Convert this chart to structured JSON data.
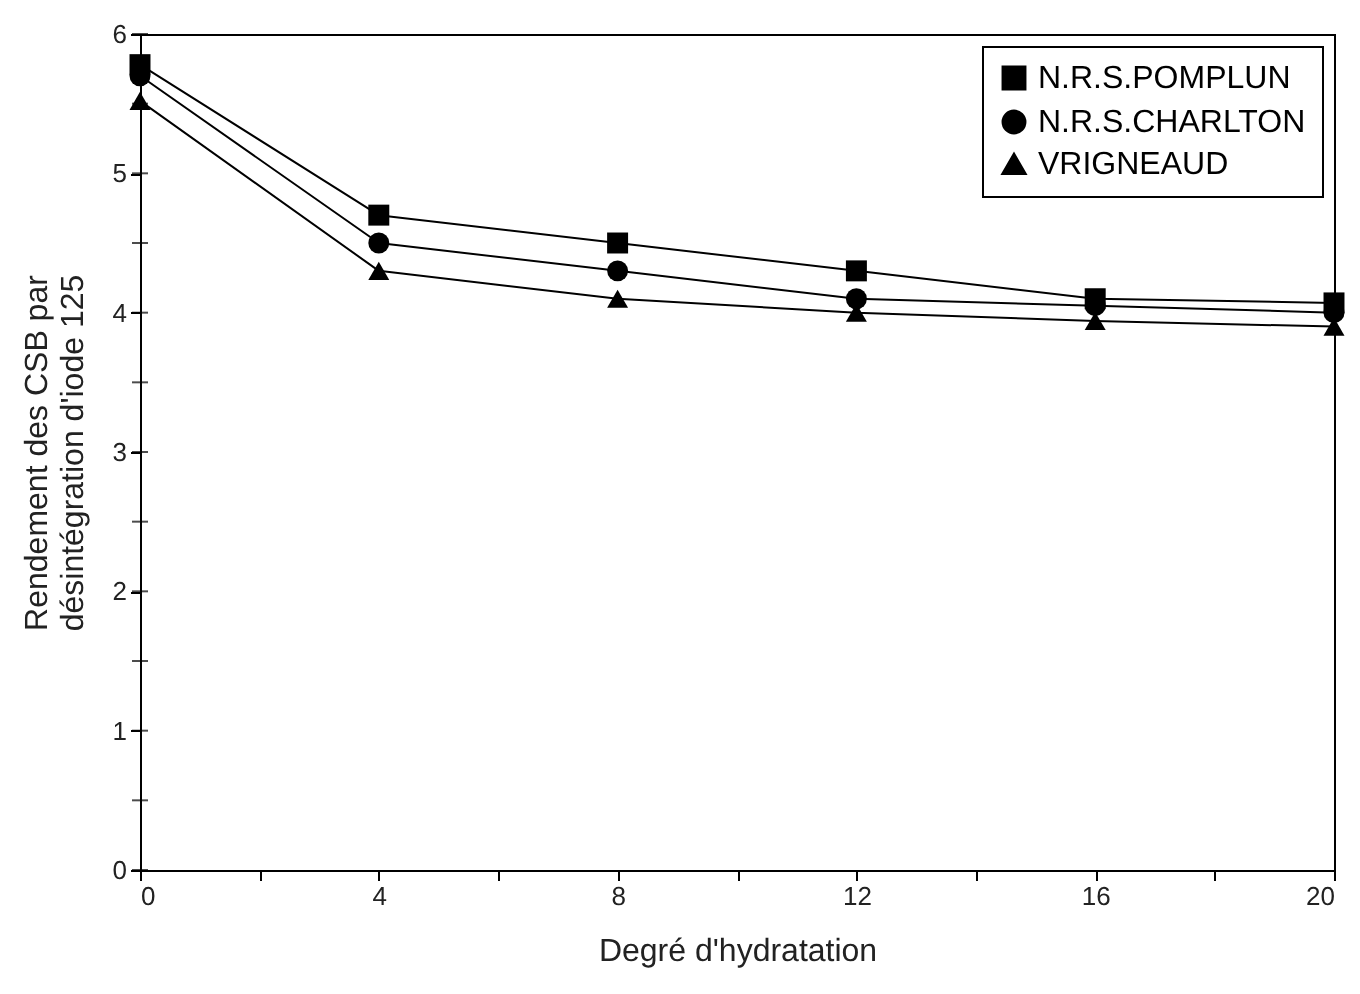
{
  "chart_data": {
    "type": "line",
    "xlabel": "Degré d'hydratation",
    "ylabel": [
      "Rendement des CSB par",
      "désintégration d'iode 125"
    ],
    "x": [
      0,
      4,
      8,
      12,
      16,
      20
    ],
    "series": [
      {
        "name": "N.R.S.POMPLUN",
        "color": "#000000",
        "marker": "square",
        "values": [
          5.78,
          4.7,
          4.5,
          4.3,
          4.1,
          4.07
        ]
      },
      {
        "name": "N.R.S.CHARLTON",
        "color": "#000000",
        "marker": "circle",
        "values": [
          5.7,
          4.5,
          4.3,
          4.1,
          4.05,
          4.0
        ]
      },
      {
        "name": "VRIGNEAUD",
        "color": "#000000",
        "marker": "triangle",
        "values": [
          5.52,
          4.3,
          4.1,
          4.0,
          3.94,
          3.9
        ]
      }
    ],
    "xlim": [
      0,
      20
    ],
    "xticks": [
      0,
      {
        "value": 2,
        "label": null
      },
      4,
      {
        "value": 6,
        "label": null
      },
      8,
      {
        "value": 10,
        "label": null
      },
      12,
      {
        "value": 14,
        "label": null
      },
      16,
      {
        "value": 18,
        "label": null
      },
      20
    ],
    "ylim": [
      0,
      6
    ],
    "yticks": [
      0,
      {
        "value": 0.5,
        "label": null
      },
      1,
      {
        "value": 1.5,
        "label": null
      },
      2,
      {
        "value": 2.5,
        "label": null
      },
      3,
      {
        "value": 3.5,
        "label": null
      },
      4,
      {
        "value": 4.5,
        "label": null
      },
      5,
      {
        "value": 5.5,
        "label": null
      },
      6
    ],
    "legend": "top right",
    "grid": false,
    "line_style": "solid"
  }
}
